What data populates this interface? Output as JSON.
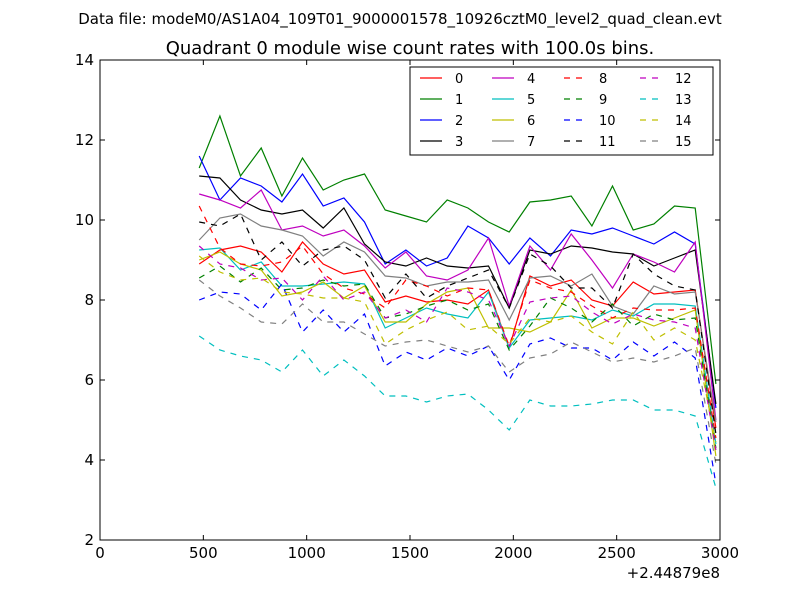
{
  "chart_data": {
    "type": "line",
    "suptitle": "Data file: modeM0/AS1A04_109T01_9000001578_10926cztM0_level2_quad_clean.evt",
    "title": "Quadrant 0 module wise count rates with 100.0s bins.",
    "xlabel": "",
    "ylabel": "",
    "xlim": [
      0,
      3000
    ],
    "ylim": [
      2,
      14
    ],
    "x_offset_label": "+2.44879e8",
    "x_ticks": [
      0,
      500,
      1000,
      1500,
      2000,
      2500,
      3000
    ],
    "x_tick_labels": [
      "0",
      "500",
      "1000",
      "1500",
      "2000",
      "2500",
      "3000"
    ],
    "y_ticks": [
      2,
      4,
      6,
      8,
      10,
      12,
      14
    ],
    "y_tick_labels": [
      "2",
      "4",
      "6",
      "8",
      "10",
      "12",
      "14"
    ],
    "grid": false,
    "legend_position": "top-right",
    "x": [
      480,
      580,
      680,
      780,
      880,
      980,
      1080,
      1180,
      1280,
      1380,
      1480,
      1580,
      1680,
      1780,
      1880,
      1980,
      2080,
      2180,
      2280,
      2380,
      2480,
      2580,
      2680,
      2780,
      2880,
      2980
    ],
    "series": [
      {
        "name": "0",
        "color": "#ff0000",
        "dash": "solid",
        "values": [
          8.9,
          9.25,
          9.35,
          9.2,
          8.7,
          9.45,
          8.9,
          8.65,
          8.75,
          7.95,
          8.1,
          7.95,
          8.0,
          7.9,
          8.25,
          6.8,
          8.6,
          8.35,
          8.5,
          8.0,
          7.85,
          8.45,
          8.15,
          8.2,
          8.25,
          4.8
        ]
      },
      {
        "name": "1",
        "color": "#008000",
        "dash": "solid",
        "values": [
          11.3,
          12.6,
          11.1,
          11.8,
          10.6,
          11.55,
          10.75,
          11.0,
          11.15,
          10.25,
          10.1,
          9.95,
          10.5,
          10.3,
          9.95,
          9.7,
          10.45,
          10.5,
          10.6,
          9.85,
          10.85,
          9.75,
          9.9,
          10.35,
          10.3,
          5.9
        ]
      },
      {
        "name": "2",
        "color": "#0000ff",
        "dash": "solid",
        "values": [
          11.6,
          10.5,
          11.05,
          10.85,
          10.45,
          11.15,
          10.35,
          10.55,
          9.95,
          8.9,
          9.25,
          8.85,
          9.05,
          9.85,
          9.55,
          8.9,
          9.55,
          9.1,
          9.75,
          9.65,
          9.8,
          9.6,
          9.4,
          9.7,
          9.4,
          5.3
        ]
      },
      {
        "name": "3",
        "color": "#000000",
        "dash": "solid",
        "values": [
          11.1,
          11.05,
          10.5,
          10.25,
          10.15,
          10.25,
          9.8,
          10.3,
          9.4,
          8.95,
          8.85,
          9.05,
          8.85,
          8.8,
          8.85,
          7.8,
          9.25,
          9.15,
          9.35,
          9.3,
          9.2,
          9.15,
          8.85,
          9.05,
          9.25,
          5.4
        ]
      },
      {
        "name": "4",
        "color": "#bf00bf",
        "dash": "solid",
        "values": [
          10.65,
          10.5,
          10.3,
          10.75,
          9.75,
          9.85,
          9.6,
          9.75,
          9.35,
          8.8,
          9.2,
          8.6,
          8.5,
          8.75,
          9.55,
          7.85,
          9.35,
          8.75,
          9.65,
          9.0,
          8.3,
          9.15,
          8.95,
          8.7,
          9.45,
          5.0
        ]
      },
      {
        "name": "5",
        "color": "#00bfbf",
        "dash": "solid",
        "values": [
          9.25,
          9.3,
          8.75,
          8.95,
          8.35,
          8.35,
          8.4,
          8.45,
          8.4,
          7.3,
          7.55,
          7.8,
          7.65,
          7.55,
          8.2,
          6.8,
          7.5,
          7.55,
          7.6,
          7.5,
          7.75,
          7.6,
          7.9,
          7.9,
          7.85,
          4.4
        ]
      },
      {
        "name": "6",
        "color": "#bfbf00",
        "dash": "solid",
        "values": [
          9.0,
          9.2,
          8.9,
          8.75,
          8.1,
          8.2,
          8.45,
          8.05,
          8.35,
          7.45,
          7.45,
          7.9,
          8.2,
          8.3,
          7.3,
          7.3,
          7.2,
          7.45,
          8.25,
          7.3,
          7.55,
          7.55,
          7.35,
          7.55,
          7.75,
          4.1
        ]
      },
      {
        "name": "7",
        "color": "#808080",
        "dash": "solid",
        "values": [
          9.5,
          10.05,
          10.15,
          9.85,
          9.75,
          9.6,
          9.1,
          9.45,
          9.2,
          8.6,
          8.55,
          8.35,
          8.45,
          8.45,
          8.5,
          7.5,
          8.55,
          8.6,
          8.35,
          8.65,
          7.85,
          7.65,
          8.35,
          8.15,
          8.2,
          4.95
        ]
      },
      {
        "name": "8",
        "color": "#ff0000",
        "dash": "dashed",
        "values": [
          10.35,
          9.3,
          8.9,
          8.85,
          8.95,
          9.35,
          8.65,
          8.3,
          8.15,
          7.8,
          8.5,
          8.35,
          8.1,
          8.3,
          8.25,
          6.85,
          8.5,
          8.3,
          8.2,
          7.85,
          7.55,
          7.8,
          7.75,
          7.75,
          7.8,
          4.55
        ]
      },
      {
        "name": "9",
        "color": "#008000",
        "dash": "dashed",
        "values": [
          8.55,
          8.85,
          8.45,
          8.8,
          8.25,
          8.3,
          8.5,
          8.35,
          8.4,
          7.55,
          7.65,
          7.85,
          8.0,
          7.75,
          7.9,
          6.75,
          7.35,
          8.05,
          7.8,
          7.45,
          7.9,
          7.35,
          7.65,
          7.5,
          7.55,
          4.3
        ]
      },
      {
        "name": "10",
        "color": "#0000ff",
        "dash": "dashed",
        "values": [
          8.0,
          8.2,
          8.15,
          7.75,
          8.4,
          7.2,
          7.75,
          7.2,
          7.65,
          6.35,
          6.7,
          6.5,
          6.8,
          6.6,
          6.85,
          6.0,
          6.9,
          7.05,
          6.8,
          6.8,
          6.5,
          6.95,
          6.6,
          6.95,
          6.55,
          3.4
        ]
      },
      {
        "name": "11",
        "color": "#000000",
        "dash": "dashed",
        "values": [
          9.95,
          9.85,
          10.15,
          9.0,
          9.45,
          8.85,
          9.25,
          9.35,
          9.0,
          8.05,
          8.65,
          8.05,
          8.35,
          8.55,
          8.75,
          7.8,
          9.15,
          8.85,
          8.3,
          8.3,
          7.8,
          9.15,
          8.65,
          8.35,
          8.25,
          4.65
        ]
      },
      {
        "name": "12",
        "color": "#bf00bf",
        "dash": "dashed",
        "values": [
          9.35,
          8.9,
          8.8,
          8.5,
          8.55,
          8.0,
          8.6,
          8.0,
          8.2,
          7.55,
          7.75,
          7.45,
          8.3,
          8.2,
          8.0,
          6.85,
          7.95,
          8.05,
          8.1,
          7.7,
          7.4,
          7.65,
          7.5,
          7.45,
          7.3,
          4.25
        ]
      },
      {
        "name": "13",
        "color": "#00bfbf",
        "dash": "dashed",
        "values": [
          7.1,
          6.75,
          6.6,
          6.5,
          6.2,
          6.75,
          6.1,
          6.5,
          6.1,
          5.6,
          5.6,
          5.45,
          5.6,
          5.65,
          5.25,
          4.75,
          5.5,
          5.35,
          5.35,
          5.4,
          5.5,
          5.5,
          5.25,
          5.25,
          5.1,
          3.3
        ]
      },
      {
        "name": "14",
        "color": "#bfbf00",
        "dash": "dashed",
        "values": [
          9.1,
          8.7,
          8.5,
          8.55,
          8.2,
          8.15,
          8.05,
          8.05,
          7.95,
          6.9,
          7.25,
          7.5,
          7.7,
          7.25,
          7.35,
          6.9,
          7.55,
          7.45,
          7.6,
          7.2,
          6.9,
          7.7,
          7.0,
          7.3,
          7.0,
          4.45
        ]
      },
      {
        "name": "15",
        "color": "#808080",
        "dash": "dashed",
        "values": [
          8.5,
          8.1,
          7.8,
          7.45,
          7.4,
          7.9,
          7.45,
          7.45,
          7.15,
          6.85,
          6.95,
          7.0,
          6.85,
          6.7,
          6.85,
          6.2,
          6.55,
          6.65,
          6.95,
          6.7,
          6.45,
          6.55,
          6.45,
          6.6,
          6.8,
          3.9
        ]
      }
    ]
  }
}
